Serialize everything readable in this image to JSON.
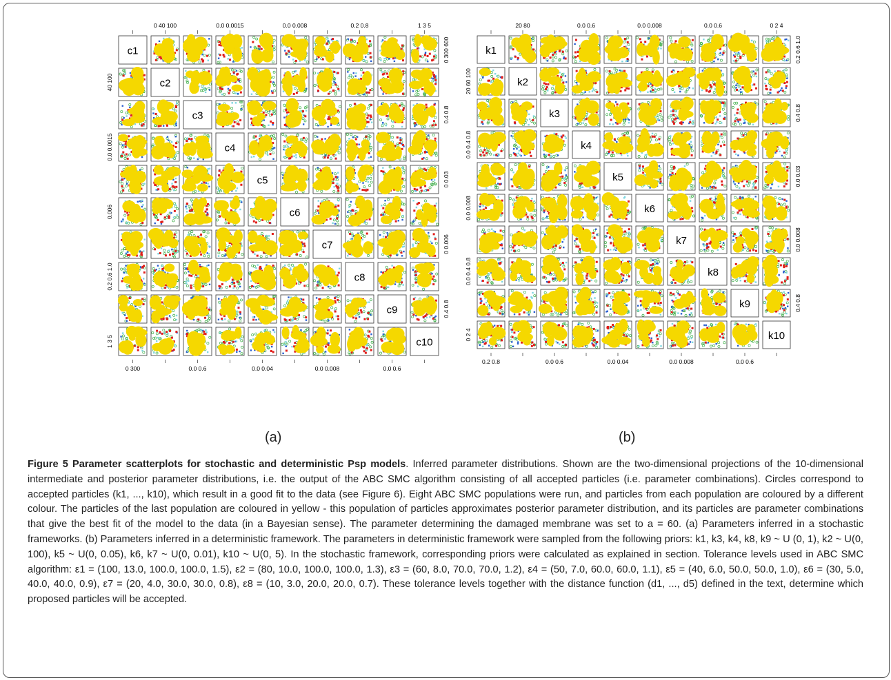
{
  "figure": {
    "panel_a": {
      "label": "(a)",
      "params": [
        "c1",
        "c2",
        "c3",
        "c4",
        "c5",
        "c6",
        "c7",
        "c8",
        "c9",
        "c10"
      ],
      "axes": [
        [
          "0",
          "300"
        ],
        [
          "40",
          "100"
        ],
        [
          "0.0",
          "0.6"
        ],
        [
          "0.0",
          "0.0015"
        ],
        [
          "0.0",
          "0.04"
        ],
        [
          "0.006"
        ],
        [
          "0.0",
          "0.008"
        ],
        [
          "0.2",
          "0.6",
          "1.0"
        ],
        [
          "0.0",
          "0.6"
        ],
        [
          "1",
          "3",
          "5"
        ]
      ],
      "axis_top": [
        "0 40 100",
        "0.0 0.0015",
        "0.0 0.008",
        "0.2 0.8",
        "1 3 5"
      ],
      "axis_right": [
        "0 300 600",
        "0.4 0.8",
        "0 0.03",
        "0 0.006",
        "0.4 0.8"
      ]
    },
    "panel_b": {
      "label": "(b)",
      "params": [
        "k1",
        "k2",
        "k3",
        "k4",
        "k5",
        "k6",
        "k7",
        "k8",
        "k9",
        "k10"
      ],
      "axes": [
        [
          "0.2",
          "0.8"
        ],
        [
          "20",
          "60",
          "100"
        ],
        [
          "0.0",
          "0.6"
        ],
        [
          "0.0",
          "0.4",
          "0.8"
        ],
        [
          "0.0",
          "0.04"
        ],
        [
          "0.0",
          "0.008"
        ],
        [
          "0.0",
          "0.008"
        ],
        [
          "0.0",
          "0.4",
          "0.8"
        ],
        [
          "0.0",
          "0.6"
        ],
        [
          "0",
          "2",
          "4"
        ]
      ],
      "axis_top": [
        "20 80",
        "0.0 0.6",
        "0.0 0.008",
        "0.0 0.6",
        "0 2 4"
      ],
      "axis_right": [
        "0.2 0.6 1.0",
        "0.4 0.8",
        "0.0 0.03",
        "0.0 0.008",
        "0.4 0.8"
      ]
    },
    "colors": {
      "yellow": "#f5d800",
      "red": "#e0201c",
      "blue": "#2a5fcf",
      "cyan": "#7fd6e0",
      "green": "#3fae4a",
      "frame": "#555555"
    }
  },
  "caption": {
    "title": "Figure 5 Parameter scatterplots for stochastic and deterministic Psp models",
    "body": ". Inferred parameter distributions. Shown are the two-dimensional projections of the 10-dimensional intermediate and posterior parameter distributions, i.e. the output of the ABC SMC algorithm consisting of all accepted particles (i.e. parameter combinations). Circles correspond to accepted particles (k1, ..., k10), which result in a good fit to the data (see Figure 6). Eight ABC SMC populations were run, and particles from each population are coloured by a different colour. The particles of the last population are coloured in yellow - this population of particles approximates posterior parameter distribution, and its particles are parameter combinations that give the best fit of the model to the data (in a Bayesian sense). The parameter determining the damaged membrane was set to a = 60. (a) Parameters inferred in a stochastic frameworks. (b) Parameters inferred in a deterministic framework. The parameters in deterministic framework were sampled from the following priors: k1, k3, k4, k8, k9 ~ U (0, 1), k2 ~ U(0, 100), k5 ~ U(0, 0.05), k6, k7 ~ U(0, 0.01), k10 ~ U(0, 5). In the stochastic framework, corresponding priors were calculated as explained in section. Tolerance levels used in ABC SMC algorithm: ε1 = (100, 13.0, 100.0, 100.0, 1.5), ε2 = (80, 10.0, 100.0, 100.0, 1.3), ε3 = (60, 8.0, 70.0, 70.0, 1.2), ε4 = (50, 7.0, 60.0, 60.0, 1.1), ε5 = (40, 6.0, 50.0, 50.0, 1.0), ε6 = (30, 5.0, 40.0, 40.0, 0.9), ε7 = (20, 4.0, 30.0, 30.0, 0.8), ε8 = (10, 3.0, 20.0, 20.0, 0.7). These tolerance levels together with the distance function (d1, ..., d5) defined in the text, determine which proposed particles will be accepted."
  }
}
